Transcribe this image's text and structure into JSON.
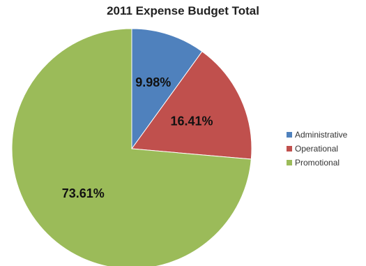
{
  "chart_data": {
    "type": "pie",
    "title": "2011 Expense Budget Total",
    "categories": [
      "Administrative",
      "Operational",
      "Promotional"
    ],
    "values": [
      9.98,
      16.41,
      73.61
    ],
    "labels": [
      "9.98%",
      "16.41%",
      "73.61%"
    ],
    "colors": [
      "#4f81bd",
      "#c0504d",
      "#9bbb59"
    ],
    "legend_position": "right"
  }
}
